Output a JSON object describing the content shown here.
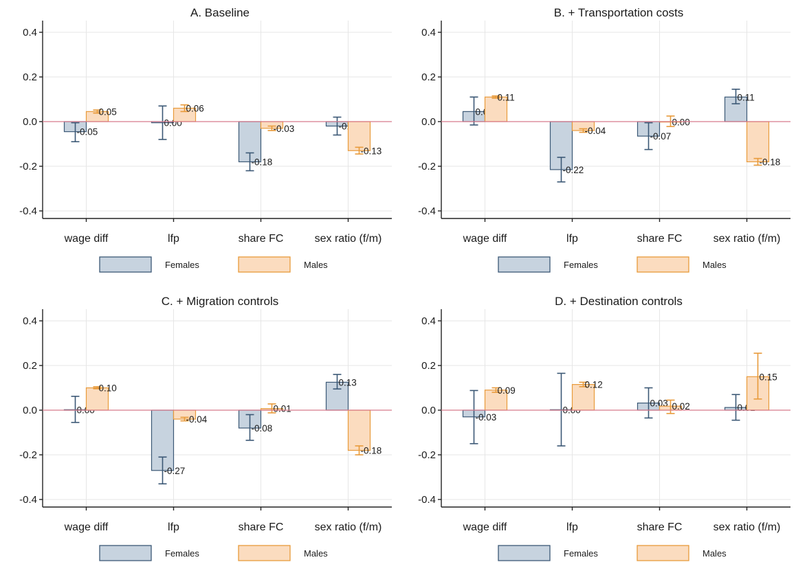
{
  "legend": {
    "females": "Females",
    "males": "Males"
  },
  "colors": {
    "females_fill": "#c7d3df",
    "females_stroke": "#3b5875",
    "males_fill": "#fbdcbf",
    "males_stroke": "#e89a3a",
    "zero_line": "#d87a8c"
  },
  "chart_data": [
    {
      "type": "bar",
      "title": "A. Baseline",
      "categories": [
        "wage diff",
        "lfp",
        "share FC",
        "sex ratio (f/m)"
      ],
      "ylim": [
        -0.45,
        0.45
      ],
      "yticks": [
        "0.4",
        "0.2",
        "0.0",
        "-0.2",
        "-0.4"
      ],
      "series": [
        {
          "name": "Females",
          "values": [
            -0.045,
            -0.005,
            -0.18,
            -0.02
          ],
          "ci_low": [
            -0.09,
            -0.08,
            -0.22,
            -0.06
          ],
          "ci_high": [
            -0.005,
            0.07,
            -0.14,
            0.02
          ],
          "labels": [
            "-0.05",
            "0.00",
            "-0.18",
            "-0.02"
          ]
        },
        {
          "name": "Males",
          "values": [
            0.045,
            0.06,
            -0.03,
            -0.13
          ],
          "ci_low": [
            0.038,
            0.045,
            -0.04,
            -0.145
          ],
          "ci_high": [
            0.052,
            0.075,
            -0.02,
            -0.115
          ],
          "labels": [
            "0.05",
            "0.06",
            "-0.03",
            "-0.13"
          ]
        }
      ]
    },
    {
      "type": "bar",
      "title": "B. + Transportation costs",
      "categories": [
        "wage diff",
        "lfp",
        "share FC",
        "sex ratio (f/m)"
      ],
      "ylim": [
        -0.45,
        0.45
      ],
      "yticks": [
        "0.4",
        "0.2",
        "0.0",
        "-0.2",
        "-0.4"
      ],
      "series": [
        {
          "name": "Females",
          "values": [
            0.045,
            -0.215,
            -0.065,
            0.11
          ],
          "ci_low": [
            -0.015,
            -0.27,
            -0.125,
            0.08
          ],
          "ci_high": [
            0.11,
            -0.16,
            -0.005,
            0.145
          ],
          "labels": [
            "0.05",
            "-0.22",
            "-0.07",
            "0.11"
          ]
        },
        {
          "name": "Males",
          "values": [
            0.11,
            -0.04,
            -0.002,
            -0.18
          ],
          "ci_low": [
            0.105,
            -0.048,
            -0.022,
            -0.195
          ],
          "ci_high": [
            0.115,
            -0.032,
            0.025,
            -0.165
          ],
          "labels": [
            "0.11",
            "-0.04",
            "0.00",
            "-0.18"
          ]
        }
      ]
    },
    {
      "type": "bar",
      "title": "C. + Migration controls",
      "categories": [
        "wage diff",
        "lfp",
        "share FC",
        "sex ratio (f/m)"
      ],
      "ylim": [
        -0.45,
        0.45
      ],
      "yticks": [
        "0.4",
        "0.2",
        "0.0",
        "-0.2",
        "-0.4"
      ],
      "series": [
        {
          "name": "Females",
          "values": [
            0.002,
            -0.27,
            -0.08,
            0.125
          ],
          "ci_low": [
            -0.055,
            -0.33,
            -0.135,
            0.095
          ],
          "ci_high": [
            0.062,
            -0.21,
            -0.02,
            0.16
          ],
          "labels": [
            "0.00",
            "-0.27",
            "-0.08",
            "0.13"
          ]
        },
        {
          "name": "Males",
          "values": [
            0.1,
            -0.04,
            0.007,
            -0.18
          ],
          "ci_low": [
            0.096,
            -0.048,
            -0.012,
            -0.2
          ],
          "ci_high": [
            0.105,
            -0.032,
            0.028,
            -0.16
          ],
          "labels": [
            "0.10",
            "-0.04",
            "0.01",
            "-0.18"
          ]
        }
      ]
    },
    {
      "type": "bar",
      "title": "D. + Destination controls",
      "categories": [
        "wage diff",
        "lfp",
        "share FC",
        "sex ratio (f/m)"
      ],
      "ylim": [
        -0.45,
        0.45
      ],
      "yticks": [
        "0.4",
        "0.2",
        "0.0",
        "-0.2",
        "-0.4"
      ],
      "series": [
        {
          "name": "Females",
          "values": [
            -0.03,
            0.002,
            0.032,
            0.012
          ],
          "ci_low": [
            -0.15,
            -0.16,
            -0.035,
            -0.045
          ],
          "ci_high": [
            0.088,
            0.165,
            0.1,
            0.07
          ],
          "labels": [
            "-0.03",
            "0.00",
            "0.03",
            "0.01"
          ]
        },
        {
          "name": "Males",
          "values": [
            0.09,
            0.115,
            0.018,
            0.15
          ],
          "ci_low": [
            0.08,
            0.105,
            -0.015,
            0.05
          ],
          "ci_high": [
            0.1,
            0.125,
            0.045,
            0.255
          ],
          "labels": [
            "0.09",
            "0.12",
            "0.02",
            "0.15"
          ]
        }
      ]
    }
  ]
}
